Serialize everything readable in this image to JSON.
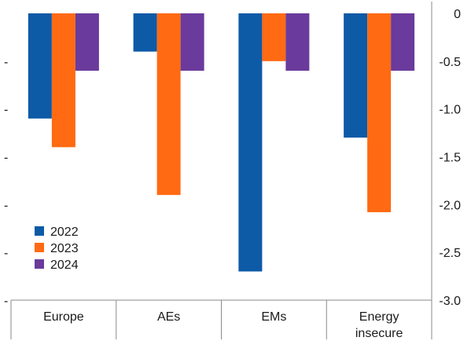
{
  "chart_data": {
    "type": "bar",
    "categories": [
      [
        "Europe"
      ],
      [
        "AEs"
      ],
      [
        "EMs"
      ],
      [
        "Energy",
        "insecure"
      ]
    ],
    "series": [
      {
        "name": "2022",
        "color": "#0d5aa7",
        "values": [
          -1.1,
          -0.4,
          -2.7,
          -1.3
        ]
      },
      {
        "name": "2023",
        "color": "#ff6a13",
        "values": [
          -1.4,
          -1.9,
          -0.5,
          -2.08
        ]
      },
      {
        "name": "2024",
        "color": "#6a3a9c",
        "values": [
          -0.6,
          -0.6,
          -0.6,
          -0.6
        ]
      }
    ],
    "ylim": [
      -3.0,
      0
    ],
    "yticks": [
      0,
      -0.5,
      -1.0,
      -1.5,
      -2.0,
      -2.5,
      -3.0
    ],
    "ytick_labels": [
      "0",
      "-0.5",
      "-1.0",
      "-1.5",
      "-2.0",
      "-2.5",
      "-3.0"
    ],
    "left_tick_labels": [
      "-",
      "-",
      "-",
      "-",
      "-",
      "-"
    ],
    "grid": false,
    "legend_position": "bottom-left"
  }
}
